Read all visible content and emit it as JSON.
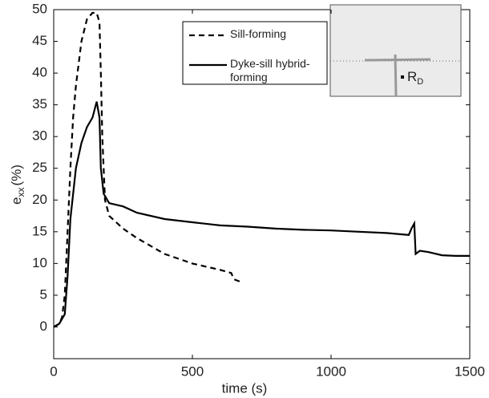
{
  "chart_data": {
    "type": "line",
    "x_label": "time (s)",
    "y_label": "e",
    "y_label_sub": "xx",
    "y_label_unit": "(%)",
    "xlim": [
      0,
      1500
    ],
    "xticks": [
      0,
      500,
      1000,
      1500
    ],
    "ylim": [
      -5,
      50
    ],
    "yticks": [
      0,
      5,
      10,
      15,
      20,
      25,
      30,
      35,
      40,
      45,
      50
    ],
    "grid": false,
    "series": [
      {
        "name": "Sill-forming",
        "color": "#000000",
        "dashed": true,
        "x": [
          0,
          20,
          30,
          40,
          50,
          60,
          70,
          80,
          100,
          120,
          140,
          155,
          165,
          170,
          175,
          185,
          200,
          250,
          300,
          400,
          500,
          600,
          640,
          650,
          680
        ],
        "values": [
          0,
          0.5,
          1.5,
          5,
          15,
          25,
          33,
          38,
          45,
          48.5,
          49.5,
          49.5,
          48,
          40,
          30,
          20,
          17.5,
          15.5,
          14,
          11.5,
          10,
          9,
          8.5,
          7.5,
          7
        ]
      },
      {
        "name": "Dyke-sill hybrid-forming",
        "color": "#000000",
        "dashed": false,
        "x": [
          0,
          20,
          40,
          50,
          60,
          80,
          100,
          120,
          140,
          155,
          165,
          170,
          180,
          200,
          250,
          300,
          400,
          500,
          600,
          700,
          800,
          900,
          1000,
          1100,
          1200,
          1280,
          1290,
          1300,
          1305,
          1320,
          1350,
          1400,
          1450,
          1500
        ],
        "values": [
          0,
          0.5,
          2,
          8,
          17,
          25,
          29,
          31.5,
          33,
          35.5,
          33,
          25,
          21,
          19.5,
          19,
          18,
          17,
          16.5,
          16,
          15.8,
          15.5,
          15.3,
          15.2,
          15,
          14.8,
          14.5,
          15.5,
          16.3,
          11.5,
          12,
          11.8,
          11.3,
          11.2,
          11.2
        ]
      }
    ],
    "inset": {
      "label": "R",
      "label_sub": "D"
    }
  }
}
